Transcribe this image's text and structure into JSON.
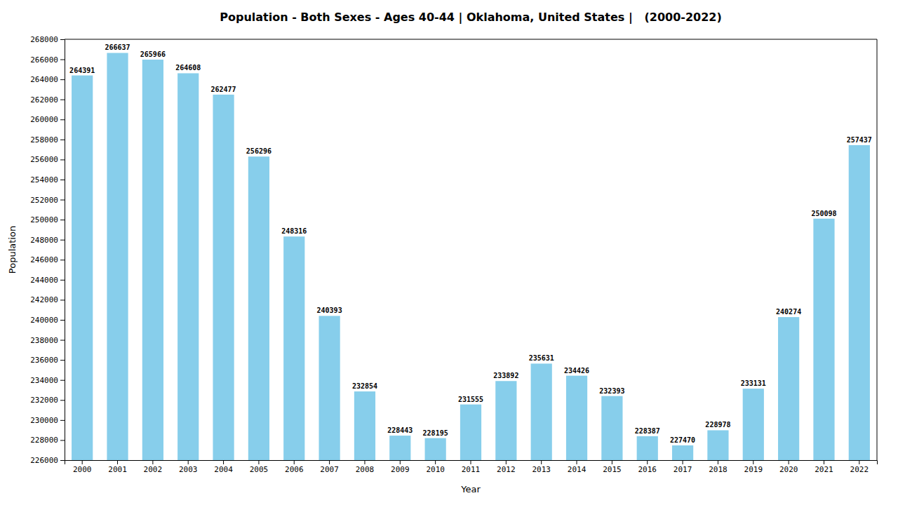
{
  "chart_data": {
    "type": "bar",
    "title": "Population - Both Sexes - Ages 40-44 | Oklahoma, United States |   (2000-2022)",
    "xlabel": "Year",
    "ylabel": "Population",
    "categories": [
      "2000",
      "2001",
      "2002",
      "2003",
      "2004",
      "2005",
      "2006",
      "2007",
      "2008",
      "2009",
      "2010",
      "2011",
      "2012",
      "2013",
      "2014",
      "2015",
      "2016",
      "2017",
      "2018",
      "2019",
      "2020",
      "2021",
      "2022"
    ],
    "values": [
      264391,
      266637,
      265966,
      264608,
      262477,
      256296,
      248316,
      240393,
      232854,
      228443,
      228195,
      231555,
      233892,
      235631,
      234426,
      232393,
      228387,
      227470,
      228978,
      233131,
      240274,
      250098,
      257437
    ],
    "color": "#87ceeb",
    "ylim": [
      226000,
      268000
    ],
    "yticks": [
      226000,
      228000,
      230000,
      232000,
      234000,
      236000,
      238000,
      240000,
      242000,
      244000,
      246000,
      248000,
      250000,
      252000,
      254000,
      256000,
      258000,
      260000,
      262000,
      264000,
      266000,
      268000
    ],
    "grid": false,
    "data_labels": true
  }
}
